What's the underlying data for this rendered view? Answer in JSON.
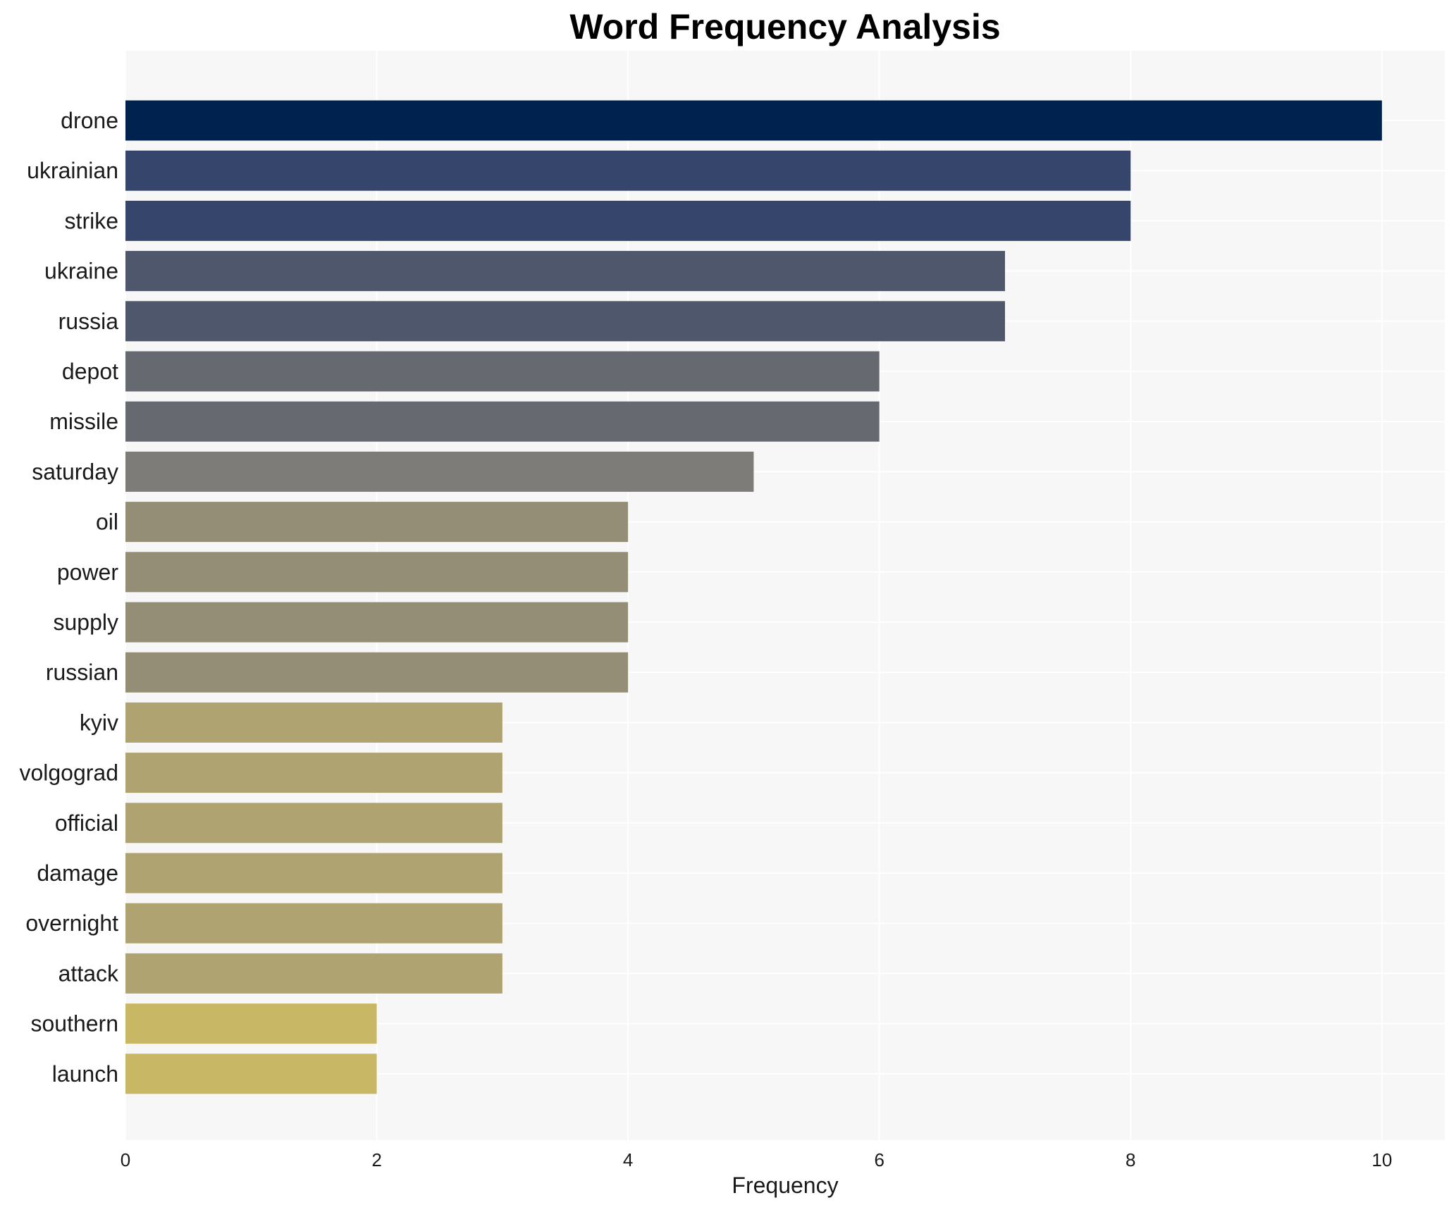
{
  "chart_data": {
    "type": "bar",
    "orientation": "horizontal",
    "title": "Word Frequency Analysis",
    "xlabel": "Frequency",
    "ylabel": "",
    "xlim": [
      0,
      10.5
    ],
    "x_ticks": [
      0,
      2,
      4,
      6,
      8,
      10
    ],
    "grid": true,
    "categories": [
      "drone",
      "ukrainian",
      "strike",
      "ukraine",
      "russia",
      "depot",
      "missile",
      "saturday",
      "oil",
      "power",
      "supply",
      "russian",
      "kyiv",
      "volgograd",
      "official",
      "damage",
      "overnight",
      "attack",
      "southern",
      "launch"
    ],
    "values": [
      10,
      8,
      8,
      7,
      7,
      6,
      6,
      5,
      4,
      4,
      4,
      4,
      3,
      3,
      3,
      3,
      3,
      3,
      2,
      2
    ],
    "colors": [
      "#00224e",
      "#35456c",
      "#35456c",
      "#4f576c",
      "#4f576c",
      "#666970",
      "#666970",
      "#7d7c78",
      "#948e77",
      "#948e77",
      "#948e77",
      "#948e77",
      "#afa371",
      "#afa371",
      "#afa371",
      "#afa371",
      "#afa371",
      "#afa371",
      "#c8b866",
      "#c8b866"
    ],
    "plot_background": "#f7f7f7",
    "grid_color": "#ffffff"
  }
}
